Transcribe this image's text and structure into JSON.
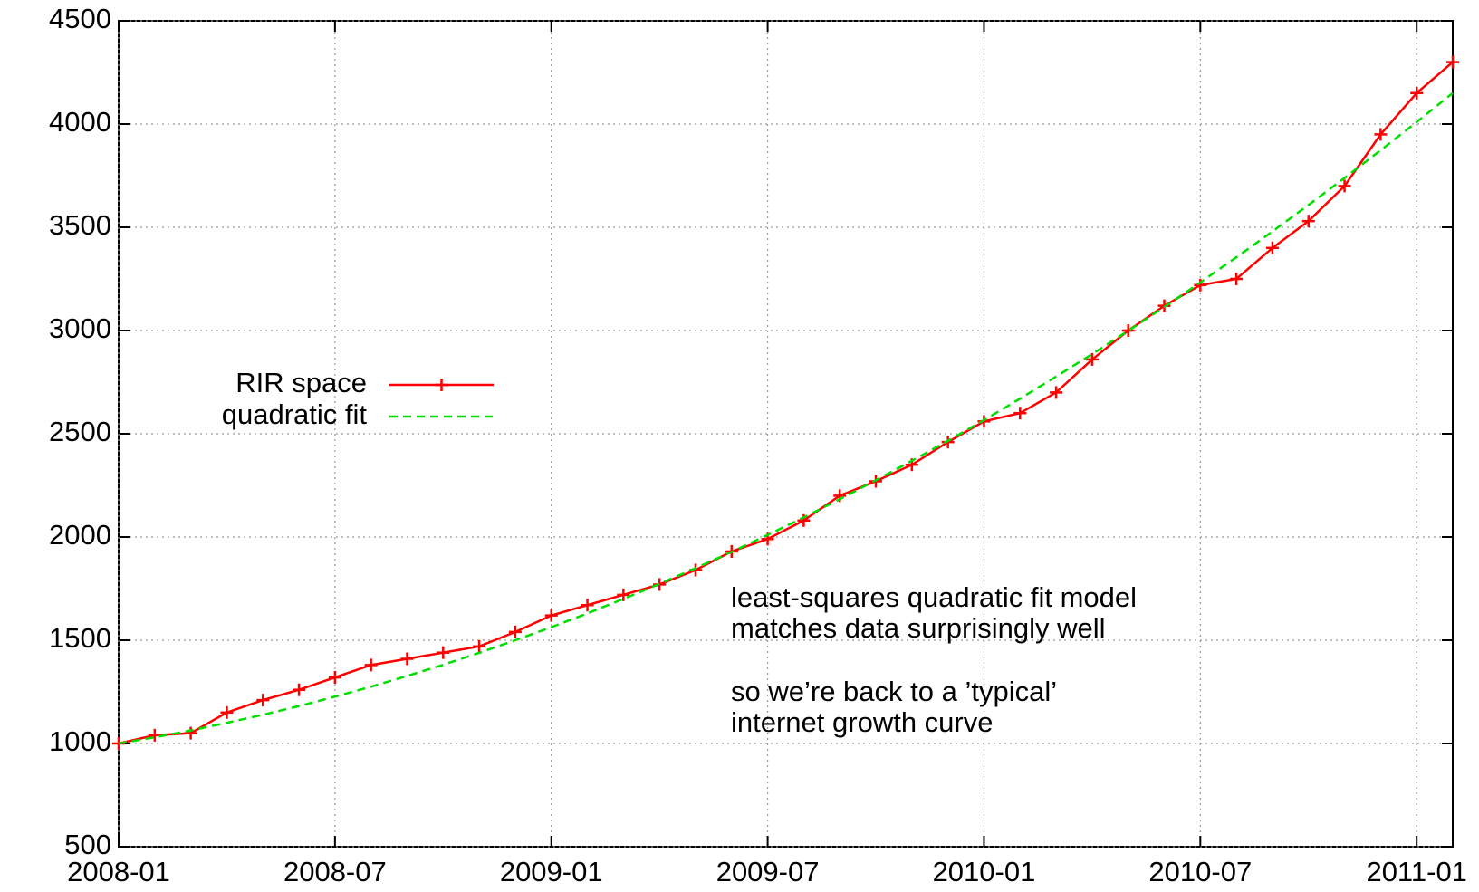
{
  "chart_data": {
    "type": "line",
    "x": [
      "2008-01",
      "2008-02",
      "2008-03",
      "2008-04",
      "2008-05",
      "2008-06",
      "2008-07",
      "2008-08",
      "2008-09",
      "2008-10",
      "2008-11",
      "2008-12",
      "2009-01",
      "2009-02",
      "2009-03",
      "2009-04",
      "2009-05",
      "2009-06",
      "2009-07",
      "2009-08",
      "2009-09",
      "2009-10",
      "2009-11",
      "2009-12",
      "2010-01",
      "2010-02",
      "2010-03",
      "2010-04",
      "2010-05",
      "2010-06",
      "2010-07",
      "2010-08",
      "2010-09",
      "2010-10",
      "2010-11",
      "2010-12",
      "2011-01",
      "2011-02"
    ],
    "series": [
      {
        "name": "RIR space",
        "color": "#ff0000",
        "style": "linespoints",
        "values": [
          1000,
          1040,
          1050,
          1150,
          1210,
          1260,
          1320,
          1380,
          1410,
          1440,
          1470,
          1540,
          1620,
          1670,
          1720,
          1770,
          1840,
          1930,
          1990,
          2080,
          2200,
          2270,
          2350,
          2460,
          2560,
          2600,
          2700,
          2860,
          3000,
          3120,
          3220,
          3250,
          3400,
          3530,
          3700,
          3950,
          4150,
          4300
        ]
      },
      {
        "name": "quadratic fit",
        "color": "#00dd00",
        "style": "dashed",
        "values": [
          1000,
          1030,
          1063,
          1100,
          1139,
          1181,
          1227,
          1275,
          1327,
          1381,
          1439,
          1500,
          1563,
          1630,
          1700,
          1773,
          1849,
          1928,
          2010,
          2095,
          2183,
          2275,
          2369,
          2466,
          2566,
          2670,
          2777,
          2886,
          2999,
          3114,
          3233,
          3355,
          3480,
          3608,
          3739,
          3873,
          4010,
          4150
        ]
      }
    ],
    "xlim": [
      "2008-01",
      "2011-02"
    ],
    "xticks": [
      "2008-01",
      "2008-07",
      "2009-01",
      "2009-07",
      "2010-01",
      "2010-07",
      "2011-01"
    ],
    "ylim": [
      500,
      4500
    ],
    "yticks": [
      500,
      1000,
      1500,
      2000,
      2500,
      3000,
      3500,
      4000,
      4500
    ],
    "grid": true,
    "legend": "left",
    "annotations": [
      "least-squares quadratic fit model",
      "matches data surprisingly well",
      "so we’re back to a ’typical’",
      "internet growth curve"
    ]
  }
}
